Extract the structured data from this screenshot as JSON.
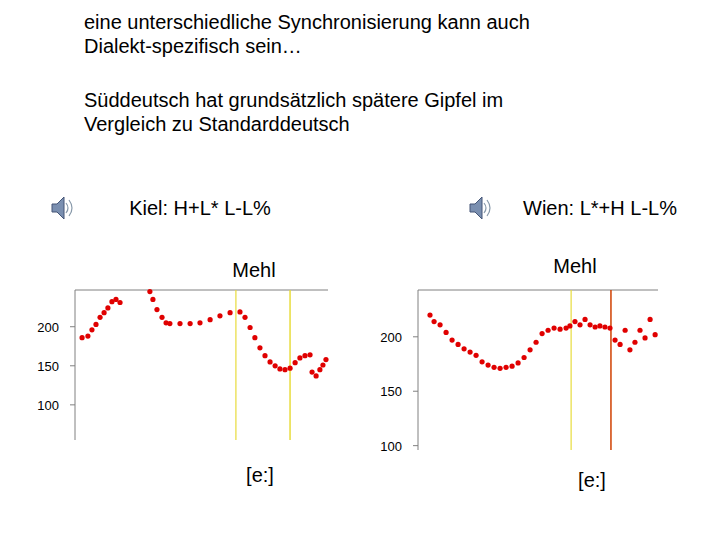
{
  "slide": {
    "heading": "eine unterschiedliche Synchronisierung  kann auch Dialekt-spezifisch sein…",
    "subheading": "Süddeutsch hat grundsätzlich spätere Gipfel im Vergleich zu Standarddeutsch"
  },
  "chart_data": [
    {
      "type": "scatter",
      "title": "Kiel: H+L* L-L%",
      "subtitle": "Mehl",
      "x": [
        2.8,
        5.1,
        6.7,
        8.3,
        9.9,
        11.5,
        13.0,
        14.6,
        16.2,
        17.8,
        29.6,
        30.8,
        32.4,
        34.4,
        36.0,
        37.5,
        41.5,
        45.5,
        49.4,
        53.4,
        57.3,
        61.3,
        65.2,
        67.2,
        69.2,
        71.1,
        73.1,
        75.1,
        77.1,
        79.1,
        81.0,
        83.0,
        85.0,
        87.0,
        88.9,
        90.9,
        92.9,
        93.7,
        95.3,
        96.8,
        98.0,
        99.2
      ],
      "values": [
        186,
        188,
        196,
        203,
        212,
        218,
        224,
        232,
        235,
        231,
        245,
        235,
        222,
        212,
        205,
        204,
        204,
        204,
        205,
        209,
        214,
        218,
        219,
        212,
        199,
        186,
        173,
        163,
        155,
        150,
        146,
        145,
        147,
        154,
        160,
        163,
        164,
        142,
        137,
        145,
        151,
        158
      ],
      "color": "#e00000",
      "marker": "circle",
      "xlim": [
        0,
        100
      ],
      "ylim": [
        55,
        247
      ],
      "yticks": [
        100,
        150,
        200
      ],
      "tick_labels": "y",
      "segment": {
        "label": "[e:]",
        "start": 63.6,
        "end": 85.0
      }
    },
    {
      "type": "scatter",
      "title": "Wien: L*+H L-L%",
      "subtitle": "Mehl",
      "x": [
        5.0,
        6.7,
        9.2,
        11.7,
        14.2,
        16.7,
        19.2,
        21.7,
        24.2,
        26.7,
        29.2,
        31.7,
        34.2,
        36.7,
        39.2,
        41.7,
        44.2,
        46.7,
        49.2,
        51.7,
        54.2,
        56.7,
        59.2,
        61.7,
        63.3,
        65.4,
        67.5,
        69.6,
        71.7,
        73.8,
        75.8,
        77.9,
        80.0,
        82.1,
        84.2,
        86.3,
        88.3,
        90.4,
        92.5,
        94.6,
        96.7,
        98.8
      ],
      "values": [
        220,
        214,
        211,
        204,
        197,
        193,
        189,
        186,
        183,
        177,
        174,
        172,
        171,
        172,
        173,
        176,
        181,
        188,
        195,
        203,
        206,
        208,
        207,
        208,
        210,
        214,
        211,
        216,
        211,
        209,
        210,
        209,
        208,
        197,
        193,
        206,
        188,
        195,
        206,
        199,
        216,
        202
      ],
      "color": "#e00000",
      "marker": "circle",
      "xlim": [
        0,
        100
      ],
      "ylim": [
        96,
        243
      ],
      "yticks": [
        100,
        150,
        200
      ],
      "tick_labels": "y",
      "segment": {
        "label": "[e:]",
        "start": 63.8,
        "end": 80.4
      }
    }
  ]
}
